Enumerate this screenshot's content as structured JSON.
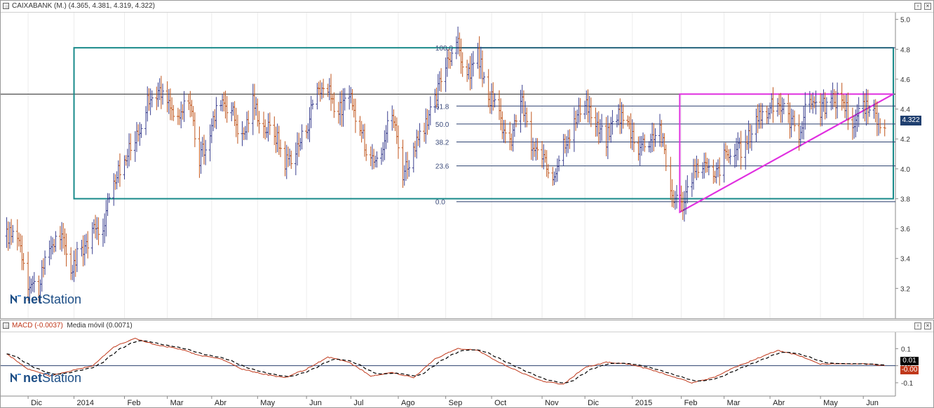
{
  "main_header": {
    "title": "CAIXABANK (M.) (4.365, 4.381, 4.319, 4.322)"
  },
  "macd_header": {
    "macd_label": "MACD (-0.0037)",
    "ma_label": "Media móvil (0.0071)"
  },
  "logo": {
    "text_bold": "net",
    "text": "Station"
  },
  "colors": {
    "up_bar": "#3a3f8f",
    "down_bar": "#c0561d",
    "box": "#188a8a",
    "triangle": "#e030e0",
    "macd_line": "#c0391b",
    "signal_line": "#000000",
    "price_tag": "#1f3f6f",
    "macd_tag_pos": "#000000",
    "macd_tag_neg": "#c0391b"
  },
  "chart_data": [
    {
      "type": "ohlc",
      "title": "CAIXABANK (M.) (4.365, 4.381, 4.319, 4.322)",
      "last_price": "4.322",
      "ylim": [
        3.0,
        5.05
      ],
      "yticks": [
        3.2,
        3.4,
        3.6,
        3.8,
        4.0,
        4.2,
        4.4,
        4.6,
        4.8,
        5.0
      ],
      "month_labels": [
        "Dic",
        "2014",
        "Feb",
        "Mar",
        "Abr",
        "May",
        "Jun",
        "Jul",
        "Ago",
        "Sep",
        "Oct",
        "Nov",
        "Dic",
        "2015",
        "Feb",
        "Mar",
        "Abr",
        "May",
        "Jun"
      ],
      "horizontal_line": 4.5,
      "fibonacci": {
        "levels": [
          {
            "label": "100.0",
            "value": 4.81
          },
          {
            "label": "61.8",
            "value": 4.42
          },
          {
            "label": "50.0",
            "value": 4.3
          },
          {
            "label": "38.2",
            "value": 4.18
          },
          {
            "label": "23.6",
            "value": 4.02
          },
          {
            "label": "0.0",
            "value": 3.78
          }
        ]
      },
      "box": {
        "x_from": "2014-01-01",
        "x_to": "2015-06-22",
        "y_from": 3.8,
        "y_to": 4.81
      },
      "triangle": {
        "x_from": "2015-02-01",
        "x_to": "2015-06-22",
        "apex_low": 3.71,
        "top": 4.5
      },
      "close_anchors": [
        [
          "2013-11-18",
          3.55
        ],
        [
          "2013-11-25",
          3.58
        ],
        [
          "2013-12-02",
          3.25
        ],
        [
          "2013-12-09",
          3.2
        ],
        [
          "2013-12-16",
          3.48
        ],
        [
          "2013-12-23",
          3.56
        ],
        [
          "2013-12-30",
          3.33
        ],
        [
          "2014-01-06",
          3.47
        ],
        [
          "2014-01-13",
          3.56
        ],
        [
          "2014-01-20",
          3.63
        ],
        [
          "2014-01-27",
          3.95
        ],
        [
          "2014-02-03",
          4.05
        ],
        [
          "2014-02-10",
          4.2
        ],
        [
          "2014-02-17",
          4.42
        ],
        [
          "2014-02-24",
          4.52
        ],
        [
          "2014-03-03",
          4.45
        ],
        [
          "2014-03-10",
          4.3
        ],
        [
          "2014-03-17",
          4.5
        ],
        [
          "2014-03-24",
          4.05
        ],
        [
          "2014-03-31",
          4.25
        ],
        [
          "2014-04-07",
          4.48
        ],
        [
          "2014-04-14",
          4.4
        ],
        [
          "2014-04-21",
          4.2
        ],
        [
          "2014-04-28",
          4.45
        ],
        [
          "2014-05-05",
          4.28
        ],
        [
          "2014-05-12",
          4.25
        ],
        [
          "2014-05-19",
          4.05
        ],
        [
          "2014-05-26",
          4.12
        ],
        [
          "2014-06-02",
          4.28
        ],
        [
          "2014-06-09",
          4.55
        ],
        [
          "2014-06-16",
          4.52
        ],
        [
          "2014-06-23",
          4.38
        ],
        [
          "2014-06-30",
          4.48
        ],
        [
          "2014-07-07",
          4.25
        ],
        [
          "2014-07-14",
          4.08
        ],
        [
          "2014-07-21",
          4.15
        ],
        [
          "2014-07-28",
          4.38
        ],
        [
          "2014-08-04",
          3.98
        ],
        [
          "2014-08-11",
          4.12
        ],
        [
          "2014-08-18",
          4.25
        ],
        [
          "2014-08-25",
          4.45
        ],
        [
          "2014-09-01",
          4.72
        ],
        [
          "2014-09-08",
          4.85
        ],
        [
          "2014-09-15",
          4.62
        ],
        [
          "2014-09-22",
          4.75
        ],
        [
          "2014-09-29",
          4.5
        ],
        [
          "2014-10-06",
          4.35
        ],
        [
          "2014-10-13",
          4.15
        ],
        [
          "2014-10-20",
          4.48
        ],
        [
          "2014-10-27",
          4.15
        ],
        [
          "2014-11-03",
          4.05
        ],
        [
          "2014-11-10",
          3.95
        ],
        [
          "2014-11-17",
          4.18
        ],
        [
          "2014-11-24",
          4.3
        ],
        [
          "2014-12-01",
          4.48
        ],
        [
          "2014-12-08",
          4.28
        ],
        [
          "2014-12-15",
          4.2
        ],
        [
          "2014-12-22",
          4.38
        ],
        [
          "2014-12-29",
          4.3
        ],
        [
          "2015-01-05",
          4.15
        ],
        [
          "2015-01-12",
          4.2
        ],
        [
          "2015-01-19",
          4.28
        ],
        [
          "2015-01-26",
          3.85
        ],
        [
          "2015-02-02",
          3.75
        ],
        [
          "2015-02-09",
          3.95
        ],
        [
          "2015-02-16",
          4.05
        ],
        [
          "2015-02-23",
          3.92
        ],
        [
          "2015-03-02",
          4.08
        ],
        [
          "2015-03-09",
          4.1
        ],
        [
          "2015-03-16",
          4.15
        ],
        [
          "2015-03-23",
          4.35
        ],
        [
          "2015-03-30",
          4.38
        ],
        [
          "2015-04-06",
          4.45
        ],
        [
          "2015-04-13",
          4.35
        ],
        [
          "2015-04-20",
          4.25
        ],
        [
          "2015-04-27",
          4.48
        ],
        [
          "2015-05-04",
          4.4
        ],
        [
          "2015-05-11",
          4.45
        ],
        [
          "2015-05-18",
          4.48
        ],
        [
          "2015-05-25",
          4.3
        ],
        [
          "2015-06-01",
          4.42
        ],
        [
          "2015-06-08",
          4.35
        ],
        [
          "2015-06-15",
          4.32
        ]
      ]
    },
    {
      "type": "line",
      "title": "MACD (-0.0037)",
      "ylim": [
        -0.17,
        0.2
      ],
      "yticks": [
        -0.1,
        0.0,
        0.1
      ],
      "ytick_labels": [
        "-0.1",
        "0.0",
        "0.1"
      ],
      "month_labels": [
        "Dic",
        "2014",
        "Feb",
        "Mar",
        "Abr",
        "May",
        "Jun",
        "Jul",
        "Ago",
        "Sep",
        "Oct",
        "Nov",
        "Dic",
        "2015",
        "Feb",
        "Mar",
        "Abr",
        "May",
        "Jun"
      ],
      "series": [
        {
          "name": "MACD (-0.0037)",
          "last_label": "-0.00"
        },
        {
          "name": "Media móvil (0.0071)",
          "last_label": "0.01"
        }
      ],
      "macd_anchors": [
        [
          "2013-11-18",
          0.07
        ],
        [
          "2013-12-02",
          -0.02
        ],
        [
          "2013-12-16",
          -0.06
        ],
        [
          "2013-12-30",
          -0.03
        ],
        [
          "2014-01-13",
          0.0
        ],
        [
          "2014-01-27",
          0.11
        ],
        [
          "2014-02-10",
          0.16
        ],
        [
          "2014-02-24",
          0.12
        ],
        [
          "2014-03-10",
          0.1
        ],
        [
          "2014-03-24",
          0.06
        ],
        [
          "2014-04-07",
          0.04
        ],
        [
          "2014-04-21",
          -0.02
        ],
        [
          "2014-05-05",
          -0.05
        ],
        [
          "2014-05-19",
          -0.07
        ],
        [
          "2014-06-02",
          -0.02
        ],
        [
          "2014-06-16",
          0.05
        ],
        [
          "2014-06-30",
          0.02
        ],
        [
          "2014-07-14",
          -0.06
        ],
        [
          "2014-07-28",
          -0.04
        ],
        [
          "2014-08-11",
          -0.07
        ],
        [
          "2014-08-25",
          0.04
        ],
        [
          "2014-09-08",
          0.1
        ],
        [
          "2014-09-22",
          0.09
        ],
        [
          "2014-10-06",
          0.02
        ],
        [
          "2014-10-20",
          -0.04
        ],
        [
          "2014-11-03",
          -0.09
        ],
        [
          "2014-11-17",
          -0.11
        ],
        [
          "2014-12-01",
          -0.01
        ],
        [
          "2014-12-15",
          0.02
        ],
        [
          "2014-12-29",
          0.01
        ],
        [
          "2015-01-12",
          -0.02
        ],
        [
          "2015-01-26",
          -0.06
        ],
        [
          "2015-02-09",
          -0.1
        ],
        [
          "2015-02-23",
          -0.07
        ],
        [
          "2015-03-09",
          -0.01
        ],
        [
          "2015-03-23",
          0.04
        ],
        [
          "2015-04-06",
          0.09
        ],
        [
          "2015-04-20",
          0.06
        ],
        [
          "2015-05-04",
          0.01
        ],
        [
          "2015-05-18",
          0.01
        ],
        [
          "2015-06-01",
          0.01
        ],
        [
          "2015-06-15",
          0.0
        ]
      ]
    }
  ]
}
